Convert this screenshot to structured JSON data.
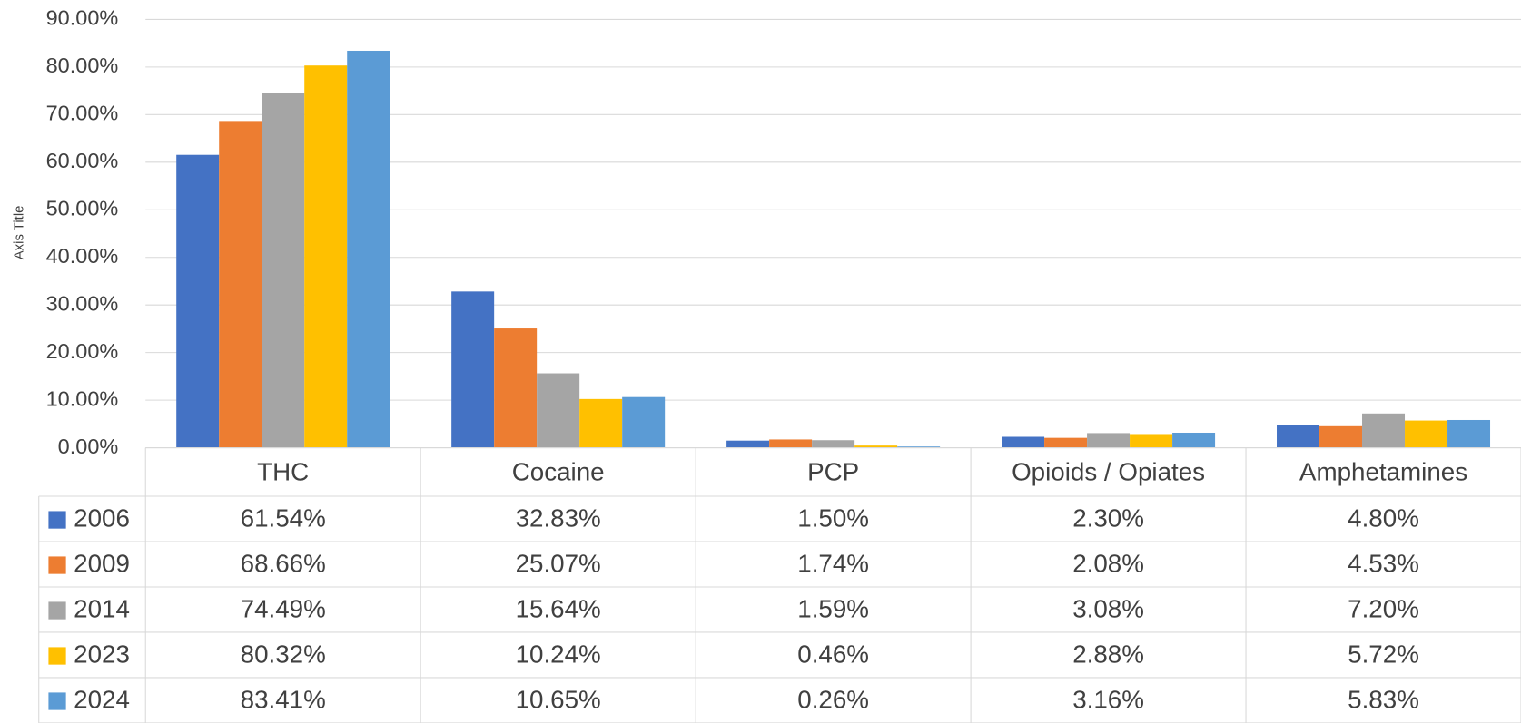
{
  "chart_data": {
    "type": "bar",
    "y_axis_title": "Axis Title",
    "categories": [
      "THC",
      "Cocaine",
      "PCP",
      "Opioids / Opiates",
      "Amphetamines"
    ],
    "series": [
      {
        "name": "2006",
        "color": "#4472c4",
        "values": [
          61.54,
          32.83,
          1.5,
          2.3,
          4.8
        ],
        "value_labels": [
          "61.54%",
          "32.83%",
          "1.50%",
          "2.30%",
          "4.80%"
        ]
      },
      {
        "name": "2009",
        "color": "#ed7d31",
        "values": [
          68.66,
          25.07,
          1.74,
          2.08,
          4.53
        ],
        "value_labels": [
          "68.66%",
          "25.07%",
          "1.74%",
          "2.08%",
          "4.53%"
        ]
      },
      {
        "name": "2014",
        "color": "#a5a5a5",
        "values": [
          74.49,
          15.64,
          1.59,
          3.08,
          7.2
        ],
        "value_labels": [
          "74.49%",
          "15.64%",
          "1.59%",
          "3.08%",
          "7.20%"
        ]
      },
      {
        "name": "2023",
        "color": "#ffc000",
        "values": [
          80.32,
          10.24,
          0.46,
          2.88,
          5.72
        ],
        "value_labels": [
          "80.32%",
          "10.24%",
          "0.46%",
          "2.88%",
          "5.72%"
        ]
      },
      {
        "name": "2024",
        "color": "#5b9bd5",
        "values": [
          83.41,
          10.65,
          0.26,
          3.16,
          5.83
        ],
        "value_labels": [
          "83.41%",
          "10.65%",
          "0.26%",
          "3.16%",
          "5.83%"
        ]
      }
    ],
    "ylim": [
      0,
      90
    ],
    "yticks": [
      {
        "value": 0,
        "label": "0.00%"
      },
      {
        "value": 10,
        "label": "10.00%"
      },
      {
        "value": 20,
        "label": "20.00%"
      },
      {
        "value": 30,
        "label": "30.00%"
      },
      {
        "value": 40,
        "label": "40.00%"
      },
      {
        "value": 50,
        "label": "50.00%"
      },
      {
        "value": 60,
        "label": "60.00%"
      },
      {
        "value": 70,
        "label": "70.00%"
      },
      {
        "value": 80,
        "label": "80.00%"
      },
      {
        "value": 90,
        "label": "90.00%"
      }
    ],
    "grid": true
  }
}
